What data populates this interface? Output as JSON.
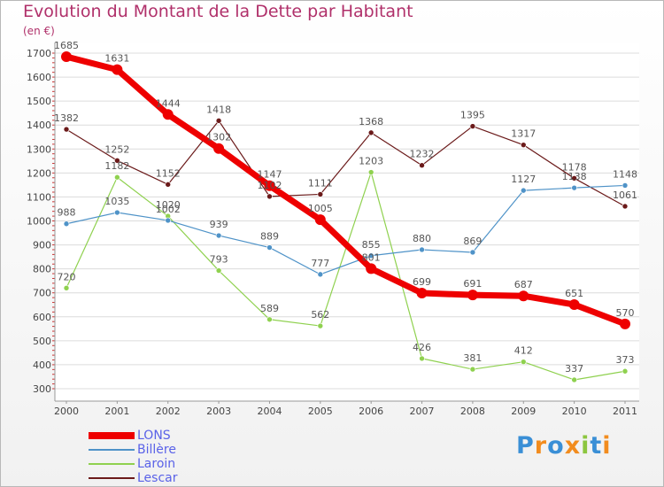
{
  "title": "Evolution du Montant de la Dette par Habitant",
  "subtitle": "(en €)",
  "logo": {
    "letters": [
      {
        "char": "P",
        "color": "#3a8fd6"
      },
      {
        "char": "r",
        "color": "#f28c1e"
      },
      {
        "char": "o",
        "color": "#3a8fd6"
      },
      {
        "char": "x",
        "color": "#f28c1e"
      },
      {
        "char": "i",
        "color": "#8cc63f"
      },
      {
        "char": "t",
        "color": "#3a8fd6"
      },
      {
        "char": "i",
        "color": "#f28c1e"
      }
    ]
  },
  "chart_data": {
    "type": "line",
    "title": "Evolution du Montant de la Dette par Habitant",
    "subtitle": "(en €)",
    "x": [
      "2000",
      "2001",
      "2002",
      "2003",
      "2004",
      "2005",
      "2006",
      "2007",
      "2008",
      "2009",
      "2010",
      "2011"
    ],
    "y_ticks": [
      300,
      400,
      500,
      600,
      700,
      800,
      900,
      1000,
      1100,
      1200,
      1300,
      1400,
      1500,
      1600,
      1700
    ],
    "ylim": [
      300,
      1700
    ],
    "grid": "horizontal",
    "legend": "bottom-left",
    "series": [
      {
        "name": "LONS",
        "color": "#ee0000",
        "values": [
          1685,
          1631,
          1444,
          1302,
          1147,
          1005,
          801,
          699,
          691,
          687,
          651,
          570
        ]
      },
      {
        "name": "Billère",
        "color": "#4f93c8",
        "values": [
          988,
          1035,
          1002,
          939,
          889,
          777,
          855,
          880,
          869,
          1127,
          1138,
          1148
        ]
      },
      {
        "name": "Laroin",
        "color": "#8fd14f",
        "values": [
          720,
          1182,
          1020,
          793,
          589,
          562,
          1203,
          426,
          381,
          412,
          337,
          373
        ]
      },
      {
        "name": "Lescar",
        "color": "#6b1a1a",
        "values": [
          1382,
          1252,
          1152,
          1418,
          1102,
          1111,
          1368,
          1232,
          1395,
          1317,
          1178,
          1061
        ]
      }
    ]
  }
}
